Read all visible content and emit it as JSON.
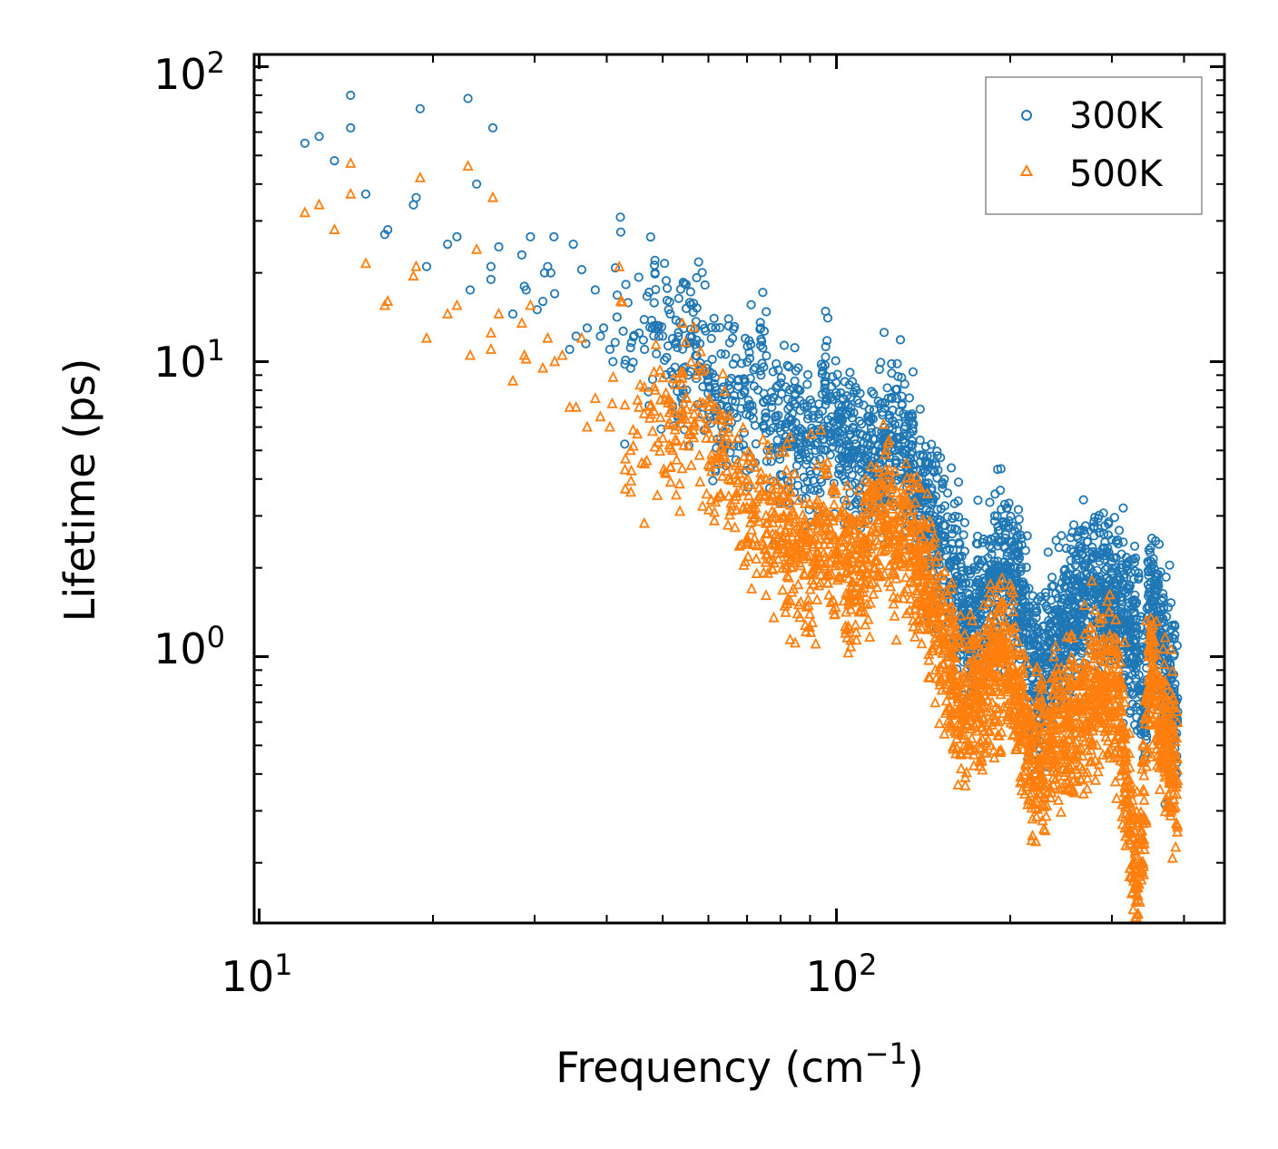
{
  "chart_data": {
    "type": "scatter",
    "x_scale": "log",
    "y_scale": "log",
    "xlabel": "Frequency (cm",
    "xlabel_sup": "−1",
    "xlabel_end": ")",
    "ylabel": "Lifetime (ps)",
    "xlim": [
      9.8,
      470
    ],
    "ylim": [
      0.125,
      110
    ],
    "x_major_ticks": [
      {
        "value": 10,
        "base": "10",
        "exp": "1"
      },
      {
        "value": 100,
        "base": "10",
        "exp": "2"
      }
    ],
    "y_major_ticks": [
      {
        "value": 1,
        "base": "10",
        "exp": "0"
      },
      {
        "value": 10,
        "base": "10",
        "exp": "1"
      },
      {
        "value": 100,
        "base": "10",
        "exp": "2"
      }
    ],
    "legend_position": "top-right",
    "series": [
      {
        "name": "300K",
        "marker": "circle",
        "color": "#1f77b4",
        "points": [
          [
            12,
            55
          ],
          [
            12.7,
            58
          ],
          [
            13.5,
            48
          ],
          [
            14.4,
            80
          ],
          [
            14.4,
            62
          ],
          [
            15.3,
            37
          ],
          [
            16.5,
            27
          ],
          [
            16.7,
            28
          ],
          [
            18.5,
            34
          ],
          [
            18.7,
            36
          ],
          [
            19,
            72
          ],
          [
            19.5,
            21
          ],
          [
            21.2,
            25
          ],
          [
            22,
            26.5
          ],
          [
            23,
            78
          ],
          [
            23.2,
            17.5
          ],
          [
            23.8,
            40
          ],
          [
            25.2,
            19
          ],
          [
            25.2,
            21
          ],
          [
            25.4,
            62
          ],
          [
            26,
            24.5
          ],
          [
            27.5,
            14.5
          ],
          [
            28.5,
            23
          ],
          [
            28.8,
            18
          ],
          [
            29,
            17.5
          ],
          [
            29.5,
            26.5
          ],
          [
            32.4,
            26.5
          ],
          [
            31.2,
            20
          ],
          [
            31.6,
            21
          ],
          [
            32,
            20
          ],
          [
            32.5,
            17
          ],
          [
            31,
            16
          ],
          [
            30.3,
            15
          ],
          [
            35,
            25
          ],
          [
            36.2,
            20.5
          ],
          [
            38.2,
            17.5
          ],
          [
            37,
            13
          ],
          [
            35.4,
            12.2
          ],
          [
            34.5,
            11
          ],
          [
            36.8,
            11.5
          ],
          [
            39,
            12.2
          ],
          [
            39.5,
            13
          ],
          [
            40.5,
            11
          ],
          [
            41,
            10
          ],
          [
            42.3,
            27.5
          ],
          [
            43,
            9.8
          ],
          [
            44,
            9.5
          ],
          [
            45.5,
            12.5
          ],
          [
            46.5,
            11
          ],
          [
            48.5,
            20
          ],
          [
            48,
            13
          ],
          [
            49,
            13
          ],
          [
            50,
            12.2
          ],
          [
            52,
            9
          ],
          [
            55,
            11.5
          ],
          [
            58,
            11.5
          ],
          [
            59.5,
            9.5
          ],
          [
            60,
            9
          ],
          [
            62,
            7
          ],
          [
            65,
            8.3
          ],
          [
            70,
            7
          ],
          [
            74,
            9
          ],
          [
            75.5,
            6.5
          ],
          [
            80,
            5.8
          ],
          [
            85,
            6.2
          ],
          [
            90,
            5.2
          ],
          [
            92,
            5
          ],
          [
            96,
            7.5
          ],
          [
            98,
            6.5
          ],
          [
            100,
            6.1
          ],
          [
            100.5,
            5.8
          ],
          [
            104,
            5.2
          ],
          [
            108,
            5
          ],
          [
            112,
            4.8
          ],
          [
            118,
            4.7
          ],
          [
            121,
            5.5
          ],
          [
            124,
            5.6
          ],
          [
            128,
            5.5
          ],
          [
            132,
            5
          ],
          [
            136,
            4.5
          ],
          [
            140,
            3.6
          ],
          [
            145,
            3.1
          ],
          [
            150,
            2.7
          ],
          [
            154,
            2.4
          ],
          [
            158,
            2.1
          ],
          [
            163,
            1.6
          ],
          [
            167,
            1.4
          ],
          [
            170,
            1.3
          ],
          [
            175,
            1.5
          ],
          [
            180,
            1.6
          ],
          [
            185,
            1.75
          ],
          [
            190,
            1.85
          ],
          [
            195,
            1.92
          ],
          [
            200,
            2
          ],
          [
            205,
            1.85
          ],
          [
            210,
            1.55
          ],
          [
            213,
            1.2
          ],
          [
            218,
            0.85
          ],
          [
            225,
            0.85
          ],
          [
            232,
            1
          ],
          [
            240,
            1.15
          ],
          [
            250,
            1.3
          ],
          [
            262,
            1.45
          ],
          [
            272,
            1.6
          ],
          [
            282,
            1.7
          ],
          [
            292,
            1.62
          ],
          [
            302,
            1.5
          ],
          [
            312,
            1.4
          ],
          [
            322,
            1.3
          ],
          [
            331,
            1.25
          ],
          [
            336,
            1.05
          ],
          [
            343,
            0.7
          ],
          [
            348,
            1.65
          ],
          [
            353,
            1.5
          ],
          [
            358,
            1.35
          ],
          [
            366,
            1.1
          ],
          [
            374,
            0.85
          ],
          [
            382,
            0.7
          ],
          [
            390,
            0.65
          ]
        ]
      },
      {
        "name": "500K",
        "marker": "triangle",
        "color": "#ff7f0e",
        "points": [
          [
            12,
            32
          ],
          [
            12.7,
            34
          ],
          [
            13.5,
            28
          ],
          [
            14.4,
            47
          ],
          [
            14.4,
            37
          ],
          [
            15.3,
            21.5
          ],
          [
            16.5,
            15.5
          ],
          [
            16.7,
            16
          ],
          [
            18.5,
            19.5
          ],
          [
            18.7,
            21
          ],
          [
            19,
            42
          ],
          [
            19.5,
            12
          ],
          [
            21.2,
            14.5
          ],
          [
            22,
            15.5
          ],
          [
            23,
            46
          ],
          [
            23.2,
            10.5
          ],
          [
            23.8,
            24
          ],
          [
            25.2,
            11
          ],
          [
            25.2,
            12.5
          ],
          [
            25.4,
            36
          ],
          [
            26,
            14.5
          ],
          [
            27.5,
            8.6
          ],
          [
            28.5,
            13.5
          ],
          [
            28.8,
            10.5
          ],
          [
            29,
            10.2
          ],
          [
            29.5,
            15.5
          ],
          [
            31,
            9.5
          ],
          [
            31.6,
            12
          ],
          [
            32.5,
            10
          ],
          [
            33.5,
            10.5
          ],
          [
            34.5,
            7
          ],
          [
            35.4,
            7
          ],
          [
            36.2,
            12
          ],
          [
            37,
            6
          ],
          [
            38.2,
            7.5
          ],
          [
            39,
            6.5
          ],
          [
            40.5,
            6
          ],
          [
            42.3,
            16
          ],
          [
            43,
            4.3
          ],
          [
            44,
            5
          ],
          [
            45.5,
            7
          ],
          [
            46.5,
            4.5
          ],
          [
            48.5,
            8
          ],
          [
            50,
            5.5
          ],
          [
            52,
            5
          ],
          [
            55,
            7.5
          ],
          [
            58,
            6.5
          ],
          [
            59.5,
            5.5
          ],
          [
            62,
            4.5
          ],
          [
            65,
            4
          ],
          [
            70,
            3.2
          ],
          [
            75.5,
            3
          ],
          [
            80,
            2.7
          ],
          [
            85,
            2.4
          ],
          [
            90,
            2.2
          ],
          [
            96,
            2.5
          ],
          [
            100,
            2.3
          ],
          [
            104,
            2.1
          ],
          [
            108,
            2
          ],
          [
            112,
            2.5
          ],
          [
            118,
            2.9
          ],
          [
            124,
            2.6
          ],
          [
            128,
            2.2
          ],
          [
            132,
            2.8
          ],
          [
            136,
            2.3
          ],
          [
            140,
            2
          ],
          [
            145,
            1.6
          ],
          [
            150,
            1.3
          ],
          [
            154,
            1.1
          ],
          [
            158,
            0.85
          ],
          [
            163,
            0.72
          ],
          [
            167,
            0.68
          ],
          [
            170,
            0.7
          ],
          [
            175,
            0.75
          ],
          [
            180,
            0.8
          ],
          [
            185,
            0.9
          ],
          [
            190,
            0.95
          ],
          [
            195,
            1
          ],
          [
            200,
            0.9
          ],
          [
            205,
            0.75
          ],
          [
            210,
            0.62
          ],
          [
            213,
            0.55
          ],
          [
            218,
            0.45
          ],
          [
            225,
            0.45
          ],
          [
            232,
            0.5
          ],
          [
            240,
            0.55
          ],
          [
            250,
            0.6
          ],
          [
            262,
            0.66
          ],
          [
            272,
            0.72
          ],
          [
            282,
            0.8
          ],
          [
            292,
            0.85
          ],
          [
            302,
            0.75
          ],
          [
            312,
            0.6
          ],
          [
            318,
            0.4
          ],
          [
            322,
            0.28
          ],
          [
            326,
            0.2
          ],
          [
            331,
            0.17
          ],
          [
            336,
            0.2
          ],
          [
            343,
            0.45
          ],
          [
            348,
            1
          ],
          [
            353,
            0.85
          ],
          [
            358,
            0.7
          ],
          [
            366,
            0.58
          ],
          [
            374,
            0.5
          ],
          [
            382,
            0.42
          ],
          [
            390,
            0.38
          ]
        ]
      }
    ]
  }
}
